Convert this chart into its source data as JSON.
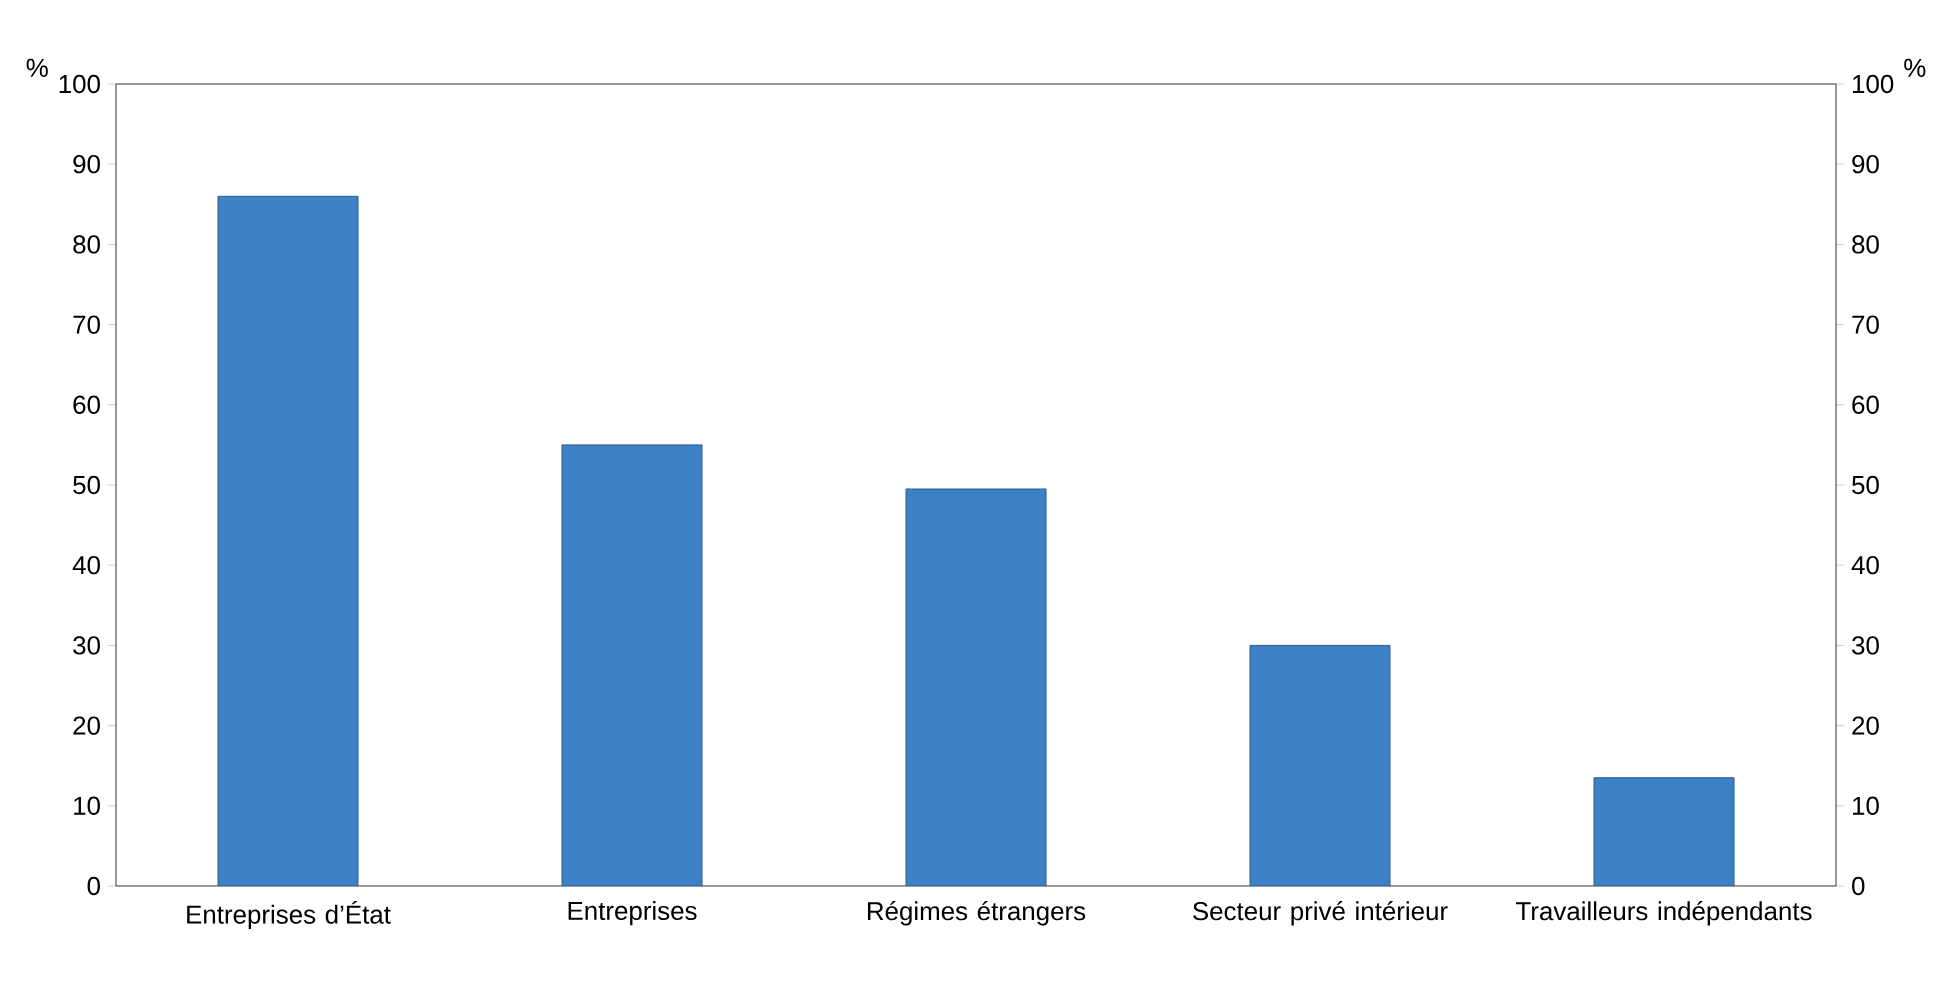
{
  "chart_data": {
    "type": "bar",
    "ylabel": "%",
    "y2label": "%",
    "categories": [
      "Entreprises d’État",
      "Entreprises",
      "Régimes étrangers",
      "Secteur privé intérieur",
      "Travailleurs indépendants"
    ],
    "values": [
      86,
      55,
      49.5,
      30,
      13.5
    ],
    "color": "#3c80c6",
    "ylim": [
      0,
      100
    ],
    "yticks": [
      0,
      10,
      20,
      30,
      40,
      50,
      60,
      70,
      80,
      90,
      100
    ],
    "y2lim": [
      0,
      100
    ],
    "y2ticks": [
      0,
      10,
      20,
      30,
      40,
      50,
      60,
      70,
      80,
      90,
      100
    ]
  }
}
